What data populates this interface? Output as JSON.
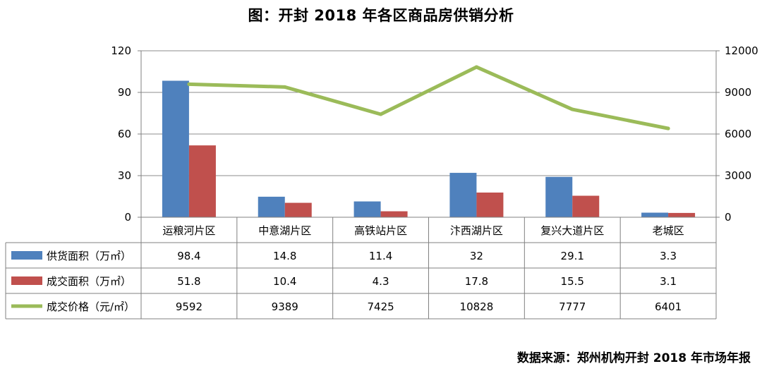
{
  "header": {
    "title": "图：开封 2018 年各区商品房供销分析"
  },
  "footer": {
    "source": "数据来源：郑州机构开封 2018 年市场年报"
  },
  "chart_data": {
    "type": "bar",
    "categories": [
      "运粮河片区",
      "中意湖片区",
      "高铁站片区",
      "汴西湖片区",
      "复兴大道片区",
      "老城区"
    ],
    "series": [
      {
        "name": "供货面积（万㎡）",
        "kind": "bar",
        "axis": "left",
        "color": "#4f81bd",
        "values": [
          98.4,
          14.8,
          11.4,
          32,
          29.1,
          3.3
        ]
      },
      {
        "name": "成交面积（万㎡）",
        "kind": "bar",
        "axis": "left",
        "color": "#c0504d",
        "values": [
          51.8,
          10.4,
          4.3,
          17.8,
          15.5,
          3.1
        ]
      },
      {
        "name": "成交价格（元/㎡）",
        "kind": "line",
        "axis": "right",
        "color": "#9bbb59",
        "values": [
          9592,
          9389,
          7425,
          10828,
          7777,
          6401
        ]
      }
    ],
    "y_left": {
      "range": [
        0,
        120
      ],
      "ticks": [
        0,
        30,
        60,
        90,
        120
      ]
    },
    "y_right": {
      "range": [
        0,
        12000
      ],
      "ticks": [
        0,
        3000,
        6000,
        9000,
        12000
      ]
    },
    "grid": true,
    "legend": "data-table-below",
    "data_table": true
  }
}
